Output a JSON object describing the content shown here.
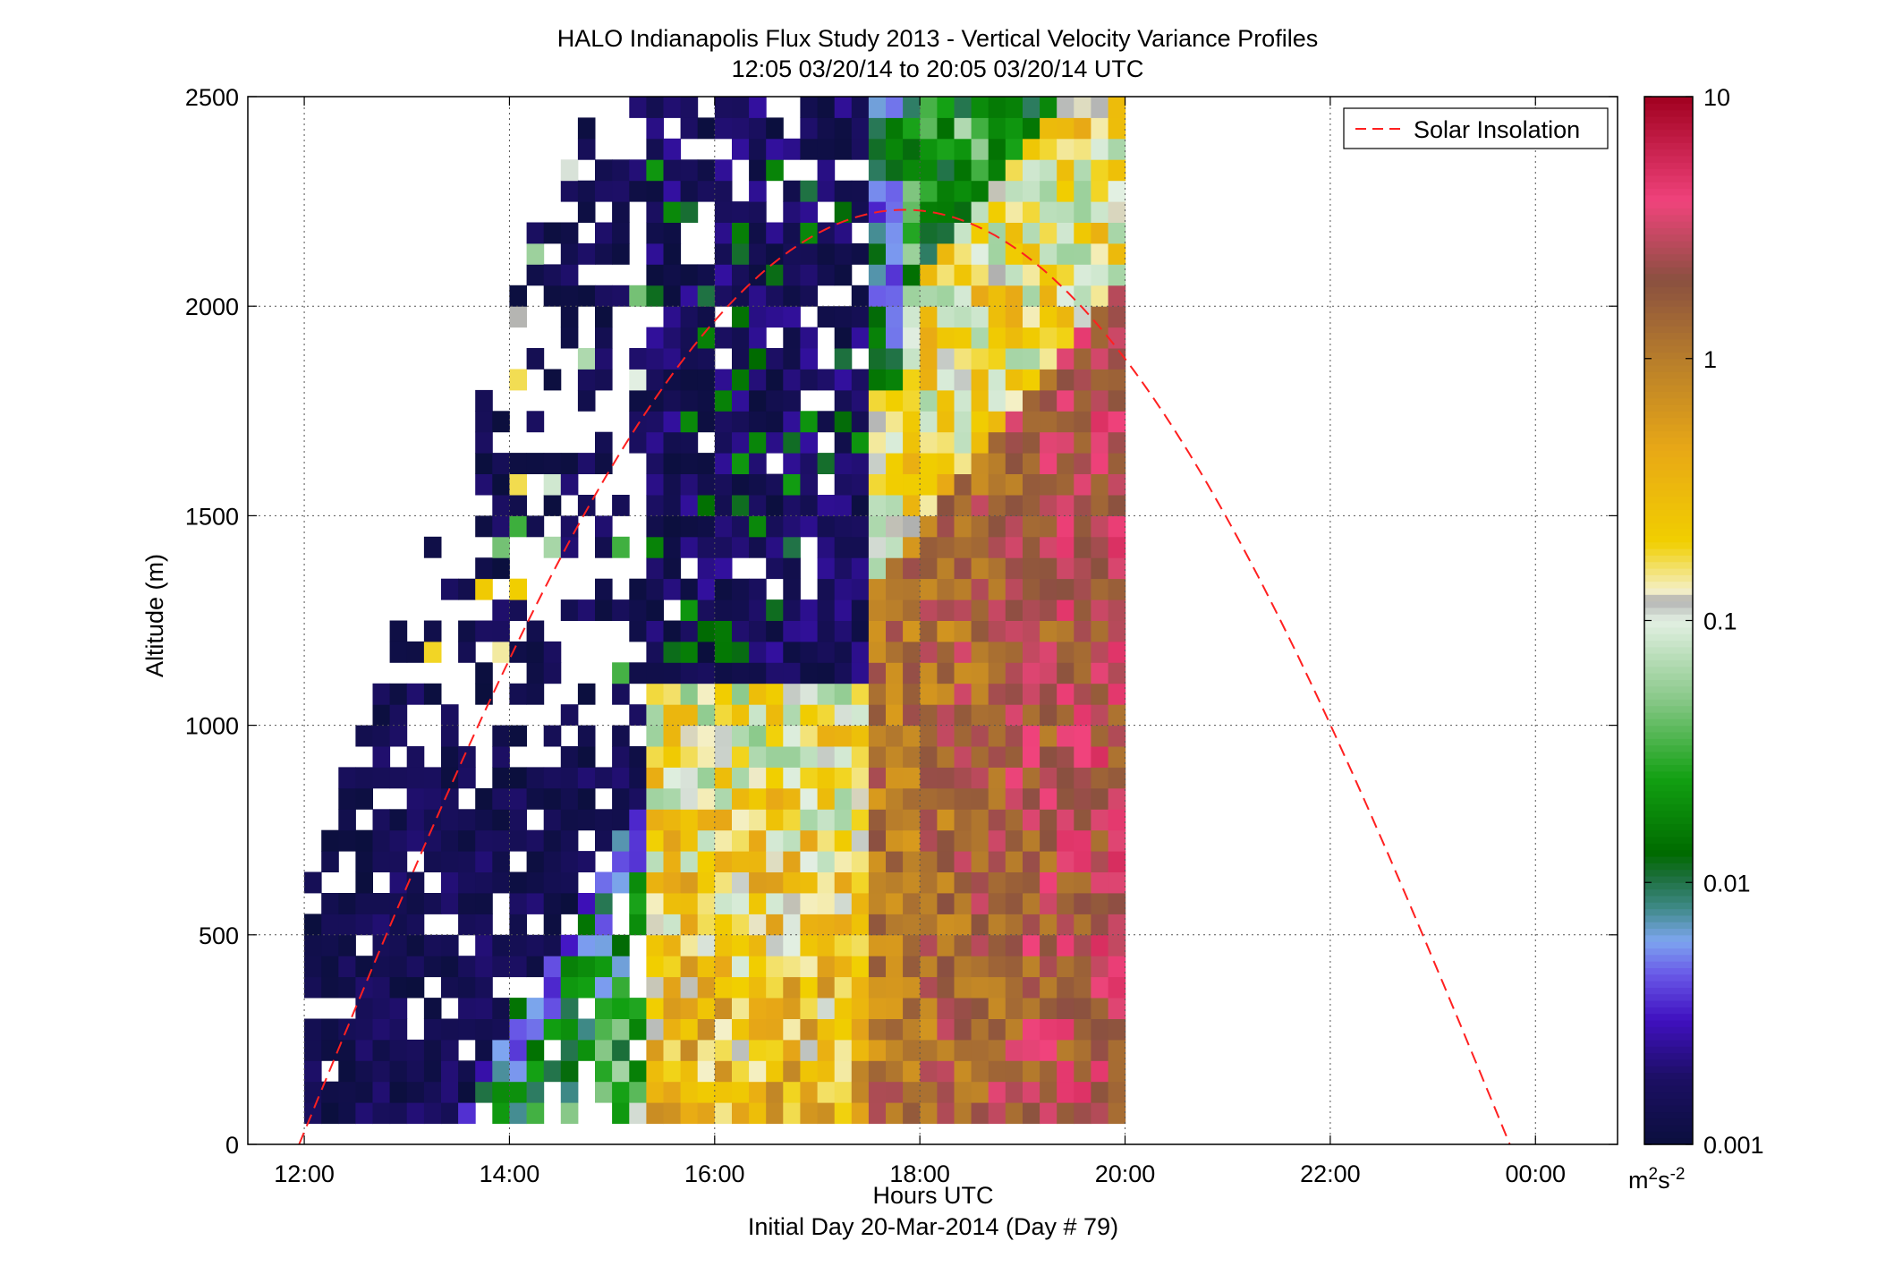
{
  "chart_data": {
    "type": "heatmap",
    "title": "HALO Indianapolis Flux Study 2013 - Vertical Velocity Variance Profiles",
    "subtitle": "12:05 03/20/14 to 20:05 03/20/14  UTC",
    "xlabel": "Hours UTC",
    "xlabel2": "Initial Day 20-Mar-2014 (Day # 79)",
    "ylabel": "Altitude (m)",
    "x_ticks": [
      "12:00",
      "14:00",
      "16:00",
      "18:00",
      "20:00",
      "22:00",
      "00:00"
    ],
    "x_tick_values": [
      12,
      14,
      16,
      18,
      20,
      22,
      24
    ],
    "xlim": [
      11.45,
      24.8
    ],
    "y_ticks": [
      "0",
      "500",
      "1000",
      "1500",
      "2000",
      "2500"
    ],
    "y_tick_values": [
      0,
      500,
      1000,
      1500,
      2000,
      2500
    ],
    "ylim": [
      0,
      2500
    ],
    "grid": true,
    "colorbar": {
      "scale": "log",
      "range": [
        0.001,
        10
      ],
      "ticks": [
        "10",
        "1",
        "0.1",
        "0.01",
        "0.001"
      ],
      "tick_values": [
        10,
        1,
        0.1,
        0.01,
        0.001
      ],
      "unit_base": "m",
      "unit_exp1": "2",
      "unit_mid": "s",
      "unit_exp2": "-2",
      "stops": [
        {
          "v": 0.001,
          "c": "#0b0f3d"
        },
        {
          "v": 0.0018,
          "c": "#1c0f64"
        },
        {
          "v": 0.003,
          "c": "#4010c0"
        },
        {
          "v": 0.0045,
          "c": "#6a5ae8"
        },
        {
          "v": 0.006,
          "c": "#7ea6f0"
        },
        {
          "v": 0.008,
          "c": "#3f8a88"
        },
        {
          "v": 0.0105,
          "c": "#1c6f3c"
        },
        {
          "v": 0.013,
          "c": "#006b00"
        },
        {
          "v": 0.025,
          "c": "#12a012"
        },
        {
          "v": 0.05,
          "c": "#88c888"
        },
        {
          "v": 0.1,
          "c": "#e3f0e3"
        },
        {
          "v": 0.12,
          "c": "#b0b0b0"
        },
        {
          "v": 0.13,
          "c": "#f4f0c8"
        },
        {
          "v": 0.2,
          "c": "#f1cf00"
        },
        {
          "v": 0.45,
          "c": "#e8a816"
        },
        {
          "v": 1.0,
          "c": "#b77d2b"
        },
        {
          "v": 2.0,
          "c": "#8a5040"
        },
        {
          "v": 4.0,
          "c": "#f0437c"
        },
        {
          "v": 10,
          "c": "#a0001f"
        }
      ]
    },
    "grid_cells": {
      "x_start": 12.083,
      "x_step": 0.1667,
      "y_start": 75,
      "y_step": 50,
      "note_columns": "each column is one 10-minute profile, values in m^2 s^-2 from bottom gate upward, null = missing"
    },
    "series": [
      {
        "name": "Solar Insolation",
        "x": [
          11.95,
          17.85,
          23.75
        ],
        "y": [
          0,
          2230,
          0
        ],
        "style": "dashed",
        "color": "#ff2020"
      }
    ],
    "legend": {
      "placement": "top-right",
      "entries": [
        "Solar Insolation"
      ]
    }
  }
}
